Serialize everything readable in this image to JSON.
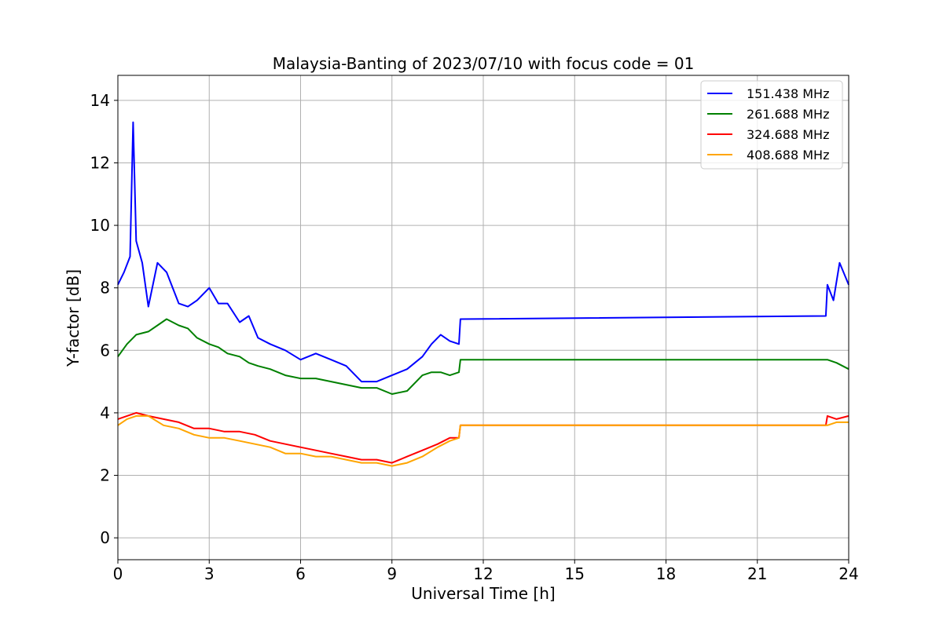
{
  "chart_data": {
    "type": "line",
    "title": "Malaysia-Banting of 2023/07/10 with focus code = 01",
    "xlabel": "Universal Time [h]",
    "ylabel": "Y-factor [dB]",
    "xlim": [
      0,
      24
    ],
    "ylim": [
      -0.7,
      14.8
    ],
    "xticks": [
      0,
      3,
      6,
      9,
      12,
      15,
      18,
      21,
      24
    ],
    "xtick_labels": [
      "0",
      "3",
      "6",
      "9",
      "12",
      "15",
      "18",
      "21",
      "24"
    ],
    "yticks": [
      0,
      2,
      4,
      6,
      8,
      10,
      12,
      14
    ],
    "ytick_labels": [
      "0",
      "2",
      "4",
      "6",
      "8",
      "10",
      "12",
      "14"
    ],
    "grid": true,
    "legend_position": "top-right",
    "series": [
      {
        "name": "151.438 MHz",
        "color": "#0000ff",
        "x": [
          0,
          0.2,
          0.4,
          0.5,
          0.6,
          0.8,
          1.0,
          1.3,
          1.6,
          2.0,
          2.3,
          2.6,
          3.0,
          3.3,
          3.6,
          4.0,
          4.3,
          4.6,
          5.0,
          5.5,
          6.0,
          6.5,
          7.0,
          7.5,
          8.0,
          8.5,
          9.0,
          9.5,
          10.0,
          10.3,
          10.6,
          10.9,
          11.2,
          11.25,
          23.25,
          23.3,
          23.5,
          23.7,
          24.0
        ],
        "y": [
          8.1,
          8.5,
          9.0,
          13.3,
          9.5,
          8.8,
          7.4,
          8.8,
          8.5,
          7.5,
          7.4,
          7.6,
          8.0,
          7.5,
          7.5,
          6.9,
          7.1,
          6.4,
          6.2,
          6.0,
          5.7,
          5.9,
          5.7,
          5.5,
          5.0,
          5.0,
          5.2,
          5.4,
          5.8,
          6.2,
          6.5,
          6.3,
          6.2,
          7.0,
          7.1,
          8.1,
          7.6,
          8.8,
          8.1
        ]
      },
      {
        "name": "261.688 MHz",
        "color": "#008000",
        "x": [
          0,
          0.3,
          0.6,
          1.0,
          1.3,
          1.6,
          2.0,
          2.3,
          2.6,
          3.0,
          3.3,
          3.6,
          4.0,
          4.3,
          4.6,
          5.0,
          5.5,
          6.0,
          6.5,
          7.0,
          7.5,
          8.0,
          8.5,
          9.0,
          9.5,
          10.0,
          10.3,
          10.6,
          10.9,
          11.2,
          11.25,
          23.25,
          23.3,
          23.6,
          24.0
        ],
        "y": [
          5.8,
          6.2,
          6.5,
          6.6,
          6.8,
          7.0,
          6.8,
          6.7,
          6.4,
          6.2,
          6.1,
          5.9,
          5.8,
          5.6,
          5.5,
          5.4,
          5.2,
          5.1,
          5.1,
          5.0,
          4.9,
          4.8,
          4.8,
          4.6,
          4.7,
          5.2,
          5.3,
          5.3,
          5.2,
          5.3,
          5.7,
          5.7,
          5.7,
          5.6,
          5.4
        ]
      },
      {
        "name": "324.688 MHz",
        "color": "#ff0000",
        "x": [
          0,
          0.3,
          0.6,
          1.0,
          1.5,
          2.0,
          2.5,
          3.0,
          3.5,
          4.0,
          4.5,
          5.0,
          5.5,
          6.0,
          6.5,
          7.0,
          7.5,
          8.0,
          8.5,
          9.0,
          9.5,
          10.0,
          10.5,
          10.9,
          11.2,
          11.25,
          23.25,
          23.3,
          23.6,
          24.0
        ],
        "y": [
          3.8,
          3.9,
          4.0,
          3.9,
          3.8,
          3.7,
          3.5,
          3.5,
          3.4,
          3.4,
          3.3,
          3.1,
          3.0,
          2.9,
          2.8,
          2.7,
          2.6,
          2.5,
          2.5,
          2.4,
          2.6,
          2.8,
          3.0,
          3.2,
          3.2,
          3.6,
          3.6,
          3.9,
          3.8,
          3.9
        ]
      },
      {
        "name": "408.688 MHz",
        "color": "#ffa500",
        "x": [
          0,
          0.3,
          0.6,
          1.0,
          1.5,
          2.0,
          2.5,
          3.0,
          3.5,
          4.0,
          4.5,
          5.0,
          5.5,
          6.0,
          6.5,
          7.0,
          7.5,
          8.0,
          8.5,
          9.0,
          9.5,
          10.0,
          10.5,
          10.9,
          11.2,
          11.25,
          23.25,
          23.3,
          23.6,
          24.0
        ],
        "y": [
          3.6,
          3.8,
          3.9,
          3.9,
          3.6,
          3.5,
          3.3,
          3.2,
          3.2,
          3.1,
          3.0,
          2.9,
          2.7,
          2.7,
          2.6,
          2.6,
          2.5,
          2.4,
          2.4,
          2.3,
          2.4,
          2.6,
          2.9,
          3.1,
          3.2,
          3.6,
          3.6,
          3.6,
          3.7,
          3.7
        ]
      }
    ]
  }
}
